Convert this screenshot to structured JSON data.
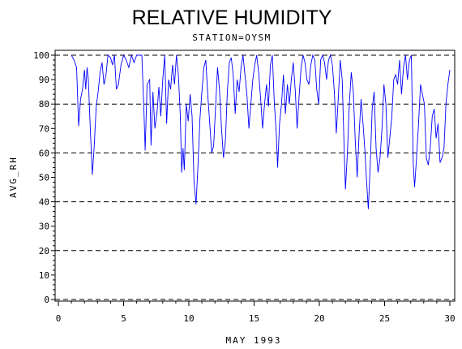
{
  "chart_data": {
    "type": "line",
    "title": "RELATIVE HUMIDITY",
    "subtitle": "STATION=OYSM",
    "xlabel": "MAY 1993",
    "ylabel": "AVG_RH",
    "xlim": [
      0,
      30
    ],
    "ylim": [
      0,
      100
    ],
    "x_ticks": [
      0,
      5,
      10,
      15,
      20,
      25,
      30
    ],
    "y_ticks": [
      0,
      10,
      20,
      30,
      40,
      50,
      60,
      70,
      80,
      90,
      100
    ],
    "gridlines_y": [
      0,
      20,
      40,
      60,
      80,
      100
    ],
    "grid": "horizontal dashed",
    "line_color": "#0000ff",
    "series": [
      {
        "points": [
          [
            1.0,
            100
          ],
          [
            1.2,
            98
          ],
          [
            1.4,
            95
          ],
          [
            1.55,
            71
          ],
          [
            1.7,
            82
          ],
          [
            1.85,
            86
          ],
          [
            2.0,
            94
          ],
          [
            2.1,
            86
          ],
          [
            2.2,
            95
          ],
          [
            2.3,
            90
          ],
          [
            2.45,
            70
          ],
          [
            2.6,
            51
          ],
          [
            2.75,
            63
          ],
          [
            2.9,
            79
          ],
          [
            3.05,
            85
          ],
          [
            3.2,
            93
          ],
          [
            3.35,
            97
          ],
          [
            3.5,
            88
          ],
          [
            3.65,
            92
          ],
          [
            3.8,
            100
          ],
          [
            4.0,
            99
          ],
          [
            4.15,
            96
          ],
          [
            4.3,
            100
          ],
          [
            4.45,
            86
          ],
          [
            4.6,
            88
          ],
          [
            4.8,
            96
          ],
          [
            5.0,
            100
          ],
          [
            5.2,
            98
          ],
          [
            5.4,
            95
          ],
          [
            5.6,
            100
          ],
          [
            5.8,
            97
          ],
          [
            6.0,
            100
          ],
          [
            6.2,
            100
          ],
          [
            6.4,
            100
          ],
          [
            6.55,
            78
          ],
          [
            6.65,
            61
          ],
          [
            6.8,
            88
          ],
          [
            7.0,
            90
          ],
          [
            7.1,
            63
          ],
          [
            7.25,
            85
          ],
          [
            7.4,
            70
          ],
          [
            7.55,
            76
          ],
          [
            7.7,
            87
          ],
          [
            7.85,
            75
          ],
          [
            8.0,
            90
          ],
          [
            8.15,
            100
          ],
          [
            8.3,
            72
          ],
          [
            8.45,
            90
          ],
          [
            8.6,
            86
          ],
          [
            8.75,
            96
          ],
          [
            8.9,
            88
          ],
          [
            9.05,
            100
          ],
          [
            9.2,
            92
          ],
          [
            9.35,
            75
          ],
          [
            9.45,
            52
          ],
          [
            9.55,
            62
          ],
          [
            9.65,
            53
          ],
          [
            9.8,
            80
          ],
          [
            9.95,
            73
          ],
          [
            10.1,
            84
          ],
          [
            10.25,
            75
          ],
          [
            10.4,
            48
          ],
          [
            10.55,
            39
          ],
          [
            10.7,
            55
          ],
          [
            10.85,
            74
          ],
          [
            11.0,
            85
          ],
          [
            11.15,
            95
          ],
          [
            11.3,
            98
          ],
          [
            11.45,
            84
          ],
          [
            11.6,
            72
          ],
          [
            11.75,
            60
          ],
          [
            11.9,
            63
          ],
          [
            12.05,
            79
          ],
          [
            12.2,
            95
          ],
          [
            12.35,
            86
          ],
          [
            12.5,
            70
          ],
          [
            12.65,
            58
          ],
          [
            12.8,
            65
          ],
          [
            12.95,
            85
          ],
          [
            13.1,
            97
          ],
          [
            13.25,
            99
          ],
          [
            13.4,
            92
          ],
          [
            13.55,
            76
          ],
          [
            13.7,
            90
          ],
          [
            13.85,
            85
          ],
          [
            14.0,
            95
          ],
          [
            14.15,
            100
          ],
          [
            14.3,
            92
          ],
          [
            14.45,
            84
          ],
          [
            14.6,
            70
          ],
          [
            14.75,
            80
          ],
          [
            14.9,
            90
          ],
          [
            15.05,
            96
          ],
          [
            15.2,
            100
          ],
          [
            15.35,
            93
          ],
          [
            15.5,
            82
          ],
          [
            15.65,
            70
          ],
          [
            15.8,
            80
          ],
          [
            15.95,
            88
          ],
          [
            16.1,
            79
          ],
          [
            16.25,
            96
          ],
          [
            16.4,
            100
          ],
          [
            16.55,
            80
          ],
          [
            16.7,
            68
          ],
          [
            16.8,
            54
          ],
          [
            16.95,
            72
          ],
          [
            17.1,
            80
          ],
          [
            17.25,
            92
          ],
          [
            17.4,
            76
          ],
          [
            17.55,
            88
          ],
          [
            17.7,
            80
          ],
          [
            17.85,
            90
          ],
          [
            18.0,
            97
          ],
          [
            18.15,
            86
          ],
          [
            18.3,
            70
          ],
          [
            18.45,
            83
          ],
          [
            18.6,
            95
          ],
          [
            18.75,
            100
          ],
          [
            18.9,
            97
          ],
          [
            19.05,
            90
          ],
          [
            19.2,
            88
          ],
          [
            19.35,
            96
          ],
          [
            19.5,
            100
          ],
          [
            19.65,
            98
          ],
          [
            19.8,
            86
          ],
          [
            19.95,
            80
          ],
          [
            20.1,
            98
          ],
          [
            20.25,
            100
          ],
          [
            20.4,
            97
          ],
          [
            20.55,
            90
          ],
          [
            20.7,
            98
          ],
          [
            20.85,
            100
          ],
          [
            21.0,
            96
          ],
          [
            21.15,
            85
          ],
          [
            21.3,
            68
          ],
          [
            21.45,
            82
          ],
          [
            21.6,
            98
          ],
          [
            21.75,
            90
          ],
          [
            21.9,
            62
          ],
          [
            22.0,
            45
          ],
          [
            22.15,
            60
          ],
          [
            22.3,
            80
          ],
          [
            22.45,
            93
          ],
          [
            22.6,
            85
          ],
          [
            22.75,
            65
          ],
          [
            22.9,
            50
          ],
          [
            23.05,
            68
          ],
          [
            23.2,
            82
          ],
          [
            23.35,
            72
          ],
          [
            23.5,
            60
          ],
          [
            23.6,
            50
          ],
          [
            23.75,
            37
          ],
          [
            23.9,
            55
          ],
          [
            24.05,
            78
          ],
          [
            24.2,
            85
          ],
          [
            24.35,
            62
          ],
          [
            24.5,
            52
          ],
          [
            24.65,
            58
          ],
          [
            24.8,
            70
          ],
          [
            24.95,
            88
          ],
          [
            25.1,
            80
          ],
          [
            25.25,
            58
          ],
          [
            25.4,
            66
          ],
          [
            25.55,
            75
          ],
          [
            25.7,
            90
          ],
          [
            25.85,
            92
          ],
          [
            26.0,
            88
          ],
          [
            26.15,
            98
          ],
          [
            26.3,
            84
          ],
          [
            26.45,
            95
          ],
          [
            26.6,
            100
          ],
          [
            26.75,
            90
          ],
          [
            26.9,
            98
          ],
          [
            27.05,
            100
          ],
          [
            27.2,
            55
          ],
          [
            27.3,
            46
          ],
          [
            27.45,
            58
          ],
          [
            27.6,
            72
          ],
          [
            27.75,
            88
          ],
          [
            27.9,
            84
          ],
          [
            28.05,
            80
          ],
          [
            28.2,
            58
          ],
          [
            28.35,
            55
          ],
          [
            28.5,
            62
          ],
          [
            28.65,
            75
          ],
          [
            28.8,
            78
          ],
          [
            28.95,
            66
          ],
          [
            29.1,
            72
          ],
          [
            29.25,
            56
          ],
          [
            29.4,
            58
          ],
          [
            29.55,
            62
          ],
          [
            29.7,
            80
          ],
          [
            29.85,
            88
          ],
          [
            30.0,
            94
          ]
        ]
      }
    ]
  }
}
